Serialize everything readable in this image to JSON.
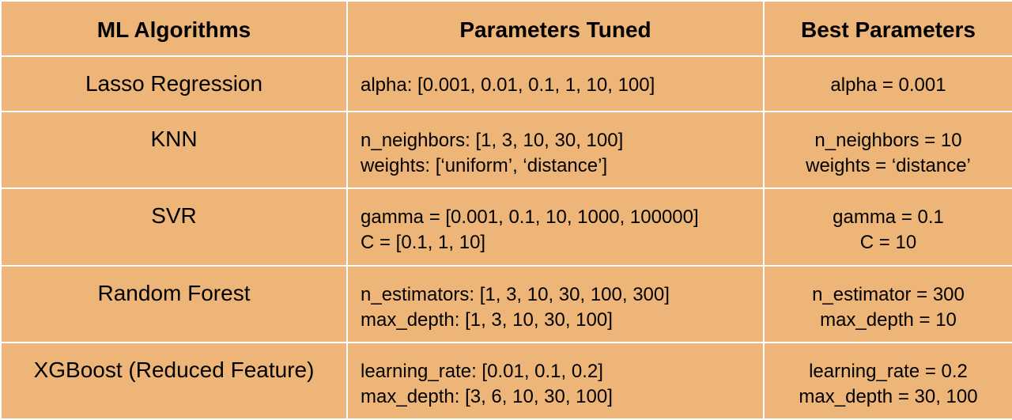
{
  "table": {
    "headers": [
      "ML Algorithms",
      "Parameters Tuned",
      "Best Parameters"
    ],
    "rows": [
      {
        "algorithm": "Lasso Regression",
        "params": [
          "alpha: [0.001, 0.01, 0.1, 1, 10, 100]"
        ],
        "best": [
          "alpha = 0.001"
        ]
      },
      {
        "algorithm": "KNN",
        "params": [
          "n_neighbors: [1, 3, 10, 30, 100]",
          "weights: [‘uniform’, ‘distance’]"
        ],
        "best": [
          "n_neighbors = 10",
          "weights = ‘distance’"
        ]
      },
      {
        "algorithm": "SVR",
        "params": [
          "gamma = [0.001, 0.1, 10, 1000, 100000]",
          "C = [0.1, 1, 10]"
        ],
        "best": [
          "gamma = 0.1",
          "C = 10"
        ]
      },
      {
        "algorithm": "Random Forest",
        "params": [
          "n_estimators: [1, 3, 10, 30, 100, 300]",
          "max_depth: [1, 3, 10, 30, 100]"
        ],
        "best": [
          "n_estimator = 300",
          "max_depth = 10"
        ]
      },
      {
        "algorithm": "XGBoost (Reduced Feature)",
        "params": [
          "learning_rate: [0.01, 0.1, 0.2]",
          "max_depth: [3, 6, 10, 30, 100]"
        ],
        "best": [
          "learning_rate = 0.2",
          "max_depth = 30, 100"
        ]
      }
    ]
  },
  "colors": {
    "cell_background": "#eeb578",
    "grid_lines": "#ffffff",
    "text": "#000000"
  }
}
